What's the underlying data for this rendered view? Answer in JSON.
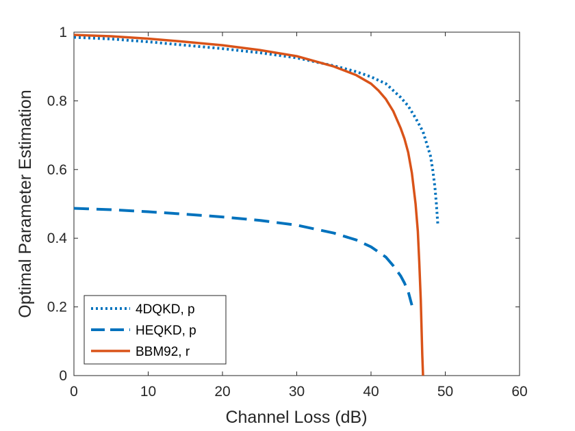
{
  "chart_data": {
    "type": "line",
    "title": "",
    "xlabel": "Channel Loss (dB)",
    "ylabel": "Optimal Parameter Estimation",
    "xlim": [
      0,
      60
    ],
    "ylim": [
      0,
      1
    ],
    "xticks": [
      "0",
      "10",
      "20",
      "30",
      "40",
      "50",
      "60"
    ],
    "yticks": [
      "0",
      "0.2",
      "0.4",
      "0.6",
      "0.8",
      "1"
    ],
    "grid": false,
    "legend": {
      "placement": "bottom-left"
    },
    "series": [
      {
        "name": "4DQKD, p",
        "style": "dotted",
        "color": "#0072BD",
        "x": [
          0,
          5,
          10,
          15,
          20,
          25,
          30,
          35,
          38,
          40,
          42,
          44,
          45,
          46,
          47,
          47.5,
          48,
          48.3,
          48.6,
          48.8,
          49
        ],
        "y": [
          0.985,
          0.98,
          0.972,
          0.962,
          0.952,
          0.94,
          0.925,
          0.902,
          0.885,
          0.87,
          0.85,
          0.81,
          0.785,
          0.75,
          0.71,
          0.675,
          0.64,
          0.6,
          0.55,
          0.5,
          0.44
        ]
      },
      {
        "name": "HEQKD, p",
        "style": "dashed",
        "color": "#0072BD",
        "x": [
          0,
          5,
          10,
          15,
          20,
          25,
          30,
          35,
          38,
          40,
          42,
          43,
          44,
          44.5,
          45,
          45.5
        ],
        "y": [
          0.487,
          0.483,
          0.477,
          0.47,
          0.462,
          0.452,
          0.438,
          0.415,
          0.395,
          0.375,
          0.345,
          0.32,
          0.29,
          0.27,
          0.245,
          0.205
        ]
      },
      {
        "name": "BBM92, r",
        "style": "solid",
        "color": "#D95319",
        "x": [
          0,
          5,
          10,
          15,
          20,
          25,
          30,
          35,
          38,
          40,
          41,
          42,
          43,
          44,
          44.5,
          45,
          45.5,
          46,
          46.3,
          46.5,
          46.7,
          46.8,
          46.9,
          47
        ],
        "y": [
          0.992,
          0.988,
          0.981,
          0.972,
          0.962,
          0.948,
          0.93,
          0.9,
          0.875,
          0.85,
          0.83,
          0.805,
          0.77,
          0.72,
          0.69,
          0.65,
          0.59,
          0.5,
          0.42,
          0.33,
          0.22,
          0.14,
          0.06,
          0
        ]
      }
    ]
  }
}
